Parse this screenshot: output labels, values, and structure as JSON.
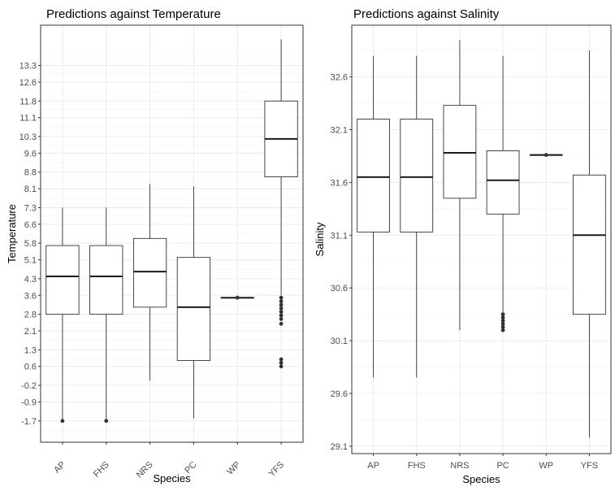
{
  "chart_data": [
    {
      "type": "box",
      "title": "Predictions against Temperature",
      "xlabel": "Species",
      "ylabel": "Temperature",
      "x_tick_rotation": -45,
      "categories": [
        "AP",
        "FHS",
        "NRS",
        "PC",
        "WP",
        "YFS"
      ],
      "y_ticks": [
        "-1.7",
        "-0.9",
        "-0.2",
        "0.6",
        "1.3",
        "2.1",
        "2.8",
        "3.6",
        "4.3",
        "5.1",
        "5.8",
        "6.6",
        "7.3",
        "8.1",
        "8.8",
        "9.6",
        "10.3",
        "11.1",
        "11.8",
        "12.6",
        "13.3"
      ],
      "ylim": [
        -2.6,
        15.0
      ],
      "grid": true,
      "boxes": [
        {
          "category": "AP",
          "min": -1.7,
          "q1": 2.8,
          "median": 4.4,
          "q3": 5.7,
          "max": 7.3,
          "outliers": [
            -1.7
          ]
        },
        {
          "category": "FHS",
          "min": -1.7,
          "q1": 2.8,
          "median": 4.4,
          "q3": 5.7,
          "max": 7.3,
          "outliers": [
            -1.7
          ]
        },
        {
          "category": "NRS",
          "min": 0.0,
          "q1": 3.1,
          "median": 4.6,
          "q3": 6.0,
          "max": 8.3,
          "outliers": []
        },
        {
          "category": "PC",
          "min": -1.6,
          "q1": 0.85,
          "median": 3.1,
          "q3": 5.2,
          "max": 8.2,
          "outliers": []
        },
        {
          "category": "WP",
          "min": 3.5,
          "q1": 3.5,
          "median": 3.5,
          "q3": 3.5,
          "max": 3.5,
          "outliers": [
            3.5
          ]
        },
        {
          "category": "YFS",
          "min": 3.6,
          "q1": 8.6,
          "median": 10.2,
          "q3": 11.8,
          "max": 14.4,
          "outliers": [
            3.5,
            3.35,
            3.2,
            3.05,
            2.9,
            2.75,
            2.6,
            2.4,
            0.9,
            0.75,
            0.6
          ]
        }
      ]
    },
    {
      "type": "box",
      "title": "Predictions against Salinity",
      "xlabel": "Species",
      "ylabel": "Salinity",
      "x_tick_rotation": 0,
      "categories": [
        "AP",
        "FHS",
        "NRS",
        "PC",
        "WP",
        "YFS"
      ],
      "y_ticks": [
        "29.1",
        "29.6",
        "30.1",
        "30.6",
        "31.1",
        "31.6",
        "32.1",
        "32.6"
      ],
      "ylim": [
        29.03,
        33.09
      ],
      "grid": true,
      "boxes": [
        {
          "category": "AP",
          "min": 29.75,
          "q1": 31.13,
          "median": 31.65,
          "q3": 32.2,
          "max": 32.8,
          "outliers": []
        },
        {
          "category": "FHS",
          "min": 29.75,
          "q1": 31.13,
          "median": 31.65,
          "q3": 32.2,
          "max": 32.8,
          "outliers": []
        },
        {
          "category": "NRS",
          "min": 30.2,
          "q1": 31.45,
          "median": 31.88,
          "q3": 32.33,
          "max": 32.95,
          "outliers": []
        },
        {
          "category": "PC",
          "min": 30.35,
          "q1": 31.3,
          "median": 31.62,
          "q3": 31.9,
          "max": 32.8,
          "outliers": [
            30.35,
            30.32,
            30.29,
            30.26,
            30.23,
            30.2
          ]
        },
        {
          "category": "WP",
          "min": 31.86,
          "q1": 31.86,
          "median": 31.86,
          "q3": 31.86,
          "max": 31.86,
          "outliers": [
            31.86
          ]
        },
        {
          "category": "YFS",
          "min": 29.18,
          "q1": 30.35,
          "median": 31.1,
          "q3": 31.67,
          "max": 32.85,
          "outliers": []
        }
      ]
    }
  ]
}
